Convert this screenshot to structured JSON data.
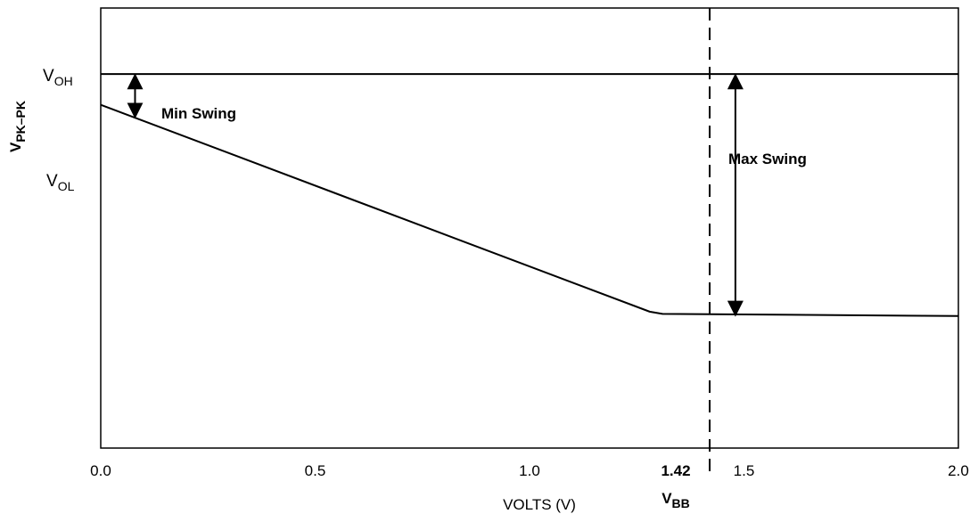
{
  "chart_data": {
    "type": "line",
    "title": "",
    "xlabel": "VOLTS (V)",
    "ylabel": "V",
    "ylabel_sub": "PK–PK",
    "xlim": [
      0.0,
      2.0
    ],
    "ylim": [
      0,
      1
    ],
    "x_ticks": [
      {
        "value": 0.0,
        "label": "0.0"
      },
      {
        "value": 0.5,
        "label": "0.5"
      },
      {
        "value": 1.0,
        "label": "1.0"
      },
      {
        "value": 1.5,
        "label": "1.5"
      },
      {
        "value": 2.0,
        "label": "2.0"
      }
    ],
    "vbb": {
      "value": 1.42,
      "label": "1.42",
      "name": "V",
      "name_sub": "BB"
    },
    "y_levels": [
      {
        "name": "V",
        "sub": "OH",
        "y": 0.85
      },
      {
        "name": "V",
        "sub": "OL",
        "y": 0.61
      }
    ],
    "series": [
      {
        "points": [
          [
            0.0,
            0.78
          ],
          [
            1.28,
            0.31
          ],
          [
            1.31,
            0.305
          ],
          [
            2.0,
            0.3
          ]
        ]
      },
      {
        "points": [
          [
            0.0,
            0.85
          ],
          [
            2.0,
            0.85
          ]
        ]
      }
    ],
    "annotations": {
      "min_swing": {
        "label": "Min Swing",
        "x": 0.08,
        "y_top": 0.85,
        "y_bottom": 0.75
      },
      "max_swing": {
        "label": "Max Swing",
        "x": 1.48,
        "y_top": 0.85,
        "y_bottom": 0.3
      }
    },
    "grid": false
  }
}
